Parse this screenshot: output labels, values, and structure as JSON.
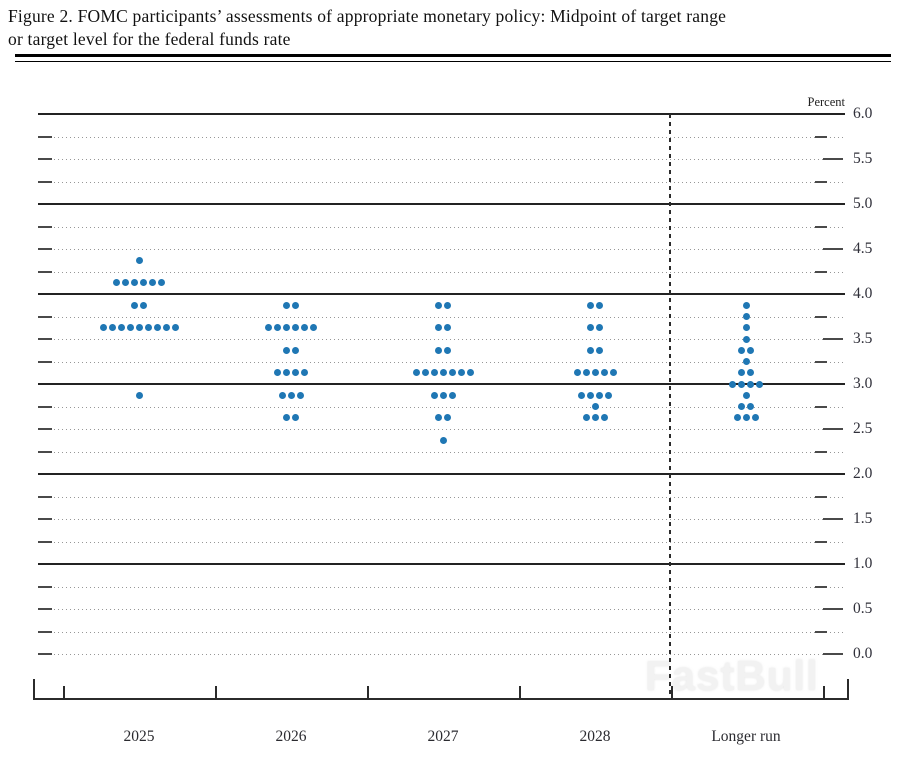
{
  "figure": {
    "title_line1": "Figure 2. FOMC participants’ assessments of appropriate monetary policy: Midpoint of target range",
    "title_line2": "or target level for the federal funds rate",
    "unit_label": "Percent",
    "watermark": "FastBull"
  },
  "colors": {
    "dot": "#1f77b4",
    "solid_gridline": "#232323",
    "dotted_gridline": "#979797",
    "axis": "#2b2b2b",
    "text": "#111111"
  },
  "chart_data": {
    "type": "scatter",
    "title": "Figure 2. FOMC participants’ assessments of appropriate monetary policy: Midpoint of target range or target level for the federal funds rate",
    "ylabel": "Percent",
    "ylim": [
      0.0,
      6.0
    ],
    "ytick_step": 0.5,
    "grid_step": 0.25,
    "solid_gridline_values": [
      6.0,
      5.0,
      4.0,
      3.0,
      2.0,
      1.0
    ],
    "ytick_labels": [
      "6.0",
      "5.5",
      "5.0",
      "4.5",
      "4.0",
      "3.5",
      "3.0",
      "2.5",
      "2.0",
      "1.5",
      "1.0",
      "0.5",
      "0.0"
    ],
    "legend_position": "none",
    "grid": "dotted quarter-point lines, solid whole-percent lines",
    "separator_after_category": "2028",
    "categories": [
      "2025",
      "2026",
      "2027",
      "2028",
      "Longer run"
    ],
    "series": [
      {
        "category": "2025",
        "dots": [
          {
            "rate": 4.375,
            "count": 1
          },
          {
            "rate": 4.125,
            "count": 6
          },
          {
            "rate": 3.875,
            "count": 2
          },
          {
            "rate": 3.625,
            "count": 9
          },
          {
            "rate": 2.875,
            "count": 1
          }
        ]
      },
      {
        "category": "2026",
        "dots": [
          {
            "rate": 3.875,
            "count": 2
          },
          {
            "rate": 3.625,
            "count": 6
          },
          {
            "rate": 3.375,
            "count": 2
          },
          {
            "rate": 3.125,
            "count": 4
          },
          {
            "rate": 2.875,
            "count": 3
          },
          {
            "rate": 2.625,
            "count": 2
          }
        ]
      },
      {
        "category": "2027",
        "dots": [
          {
            "rate": 3.875,
            "count": 2
          },
          {
            "rate": 3.625,
            "count": 2
          },
          {
            "rate": 3.375,
            "count": 2
          },
          {
            "rate": 3.125,
            "count": 7
          },
          {
            "rate": 2.875,
            "count": 3
          },
          {
            "rate": 2.625,
            "count": 2
          },
          {
            "rate": 2.375,
            "count": 1
          }
        ]
      },
      {
        "category": "2028",
        "dots": [
          {
            "rate": 3.875,
            "count": 2
          },
          {
            "rate": 3.625,
            "count": 2
          },
          {
            "rate": 3.375,
            "count": 2
          },
          {
            "rate": 3.125,
            "count": 5
          },
          {
            "rate": 2.875,
            "count": 4
          },
          {
            "rate": 2.75,
            "count": 1
          },
          {
            "rate": 2.625,
            "count": 3
          }
        ]
      },
      {
        "category": "Longer run",
        "dots": [
          {
            "rate": 3.875,
            "count": 1
          },
          {
            "rate": 3.75,
            "count": 1
          },
          {
            "rate": 3.625,
            "count": 1
          },
          {
            "rate": 3.5,
            "count": 1
          },
          {
            "rate": 3.375,
            "count": 2
          },
          {
            "rate": 3.25,
            "count": 1
          },
          {
            "rate": 3.125,
            "count": 2
          },
          {
            "rate": 3.0,
            "count": 4
          },
          {
            "rate": 2.875,
            "count": 1
          },
          {
            "rate": 2.75,
            "count": 2
          },
          {
            "rate": 2.625,
            "count": 3
          }
        ]
      }
    ]
  }
}
